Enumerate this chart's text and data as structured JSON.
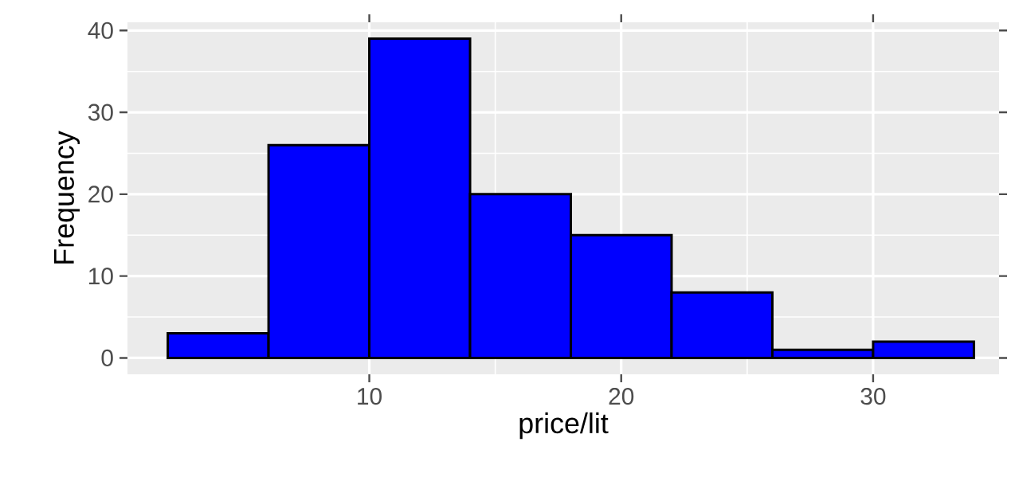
{
  "chart_data": {
    "type": "histogram",
    "xlabel": "price/lit",
    "ylabel": "Frequency",
    "bins": [
      2,
      6,
      10,
      14,
      18,
      22,
      26,
      30,
      34
    ],
    "values": [
      3,
      26,
      39,
      20,
      15,
      8,
      1,
      2
    ],
    "color": "#0000ff",
    "xlim": [
      0.4,
      35
    ],
    "ylim": [
      -2,
      41
    ],
    "xticks": [
      10,
      20,
      30
    ],
    "yticks": [
      0,
      10,
      20,
      30,
      40
    ],
    "grid": true
  }
}
